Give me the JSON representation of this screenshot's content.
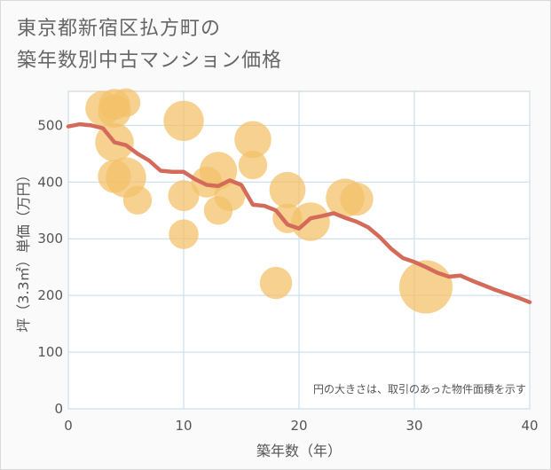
{
  "title": {
    "line1": "東京都新宿区払方町の",
    "line2": "築年数別中古マンション価格"
  },
  "chart_data": {
    "type": "scatter",
    "xlabel": "築年数（年）",
    "ylabel": "坪（3.3㎡）単価（万円）",
    "xlim": [
      0,
      40
    ],
    "ylim": [
      0,
      560
    ],
    "x_ticks": [
      "0",
      "10",
      "20",
      "30",
      "40"
    ],
    "y_ticks": [
      "0",
      "100",
      "200",
      "300",
      "400",
      "500"
    ],
    "grid": true,
    "note": "円の大きさは、取引のあった物件面積を示す",
    "colors": {
      "bubble": "#f3c26a",
      "line": "#d46b5a",
      "grid": "#c5d8e8"
    },
    "bubbles": [
      {
        "x": 3,
        "y": 530,
        "size": 0.35
      },
      {
        "x": 4,
        "y": 537,
        "size": 0.25
      },
      {
        "x": 4,
        "y": 525,
        "size": 0.3
      },
      {
        "x": 5,
        "y": 540,
        "size": 0.2
      },
      {
        "x": 4,
        "y": 470,
        "size": 0.45
      },
      {
        "x": 4,
        "y": 410,
        "size": 0.3
      },
      {
        "x": 5,
        "y": 408,
        "size": 0.5
      },
      {
        "x": 6,
        "y": 368,
        "size": 0.2
      },
      {
        "x": 10,
        "y": 508,
        "size": 0.5
      },
      {
        "x": 10,
        "y": 376,
        "size": 0.25
      },
      {
        "x": 10,
        "y": 308,
        "size": 0.22
      },
      {
        "x": 12,
        "y": 400,
        "size": 0.25
      },
      {
        "x": 13,
        "y": 420,
        "size": 0.42
      },
      {
        "x": 13,
        "y": 350,
        "size": 0.2
      },
      {
        "x": 14,
        "y": 376,
        "size": 0.25
      },
      {
        "x": 16,
        "y": 475,
        "size": 0.4
      },
      {
        "x": 16,
        "y": 430,
        "size": 0.2
      },
      {
        "x": 18,
        "y": 222,
        "size": 0.28
      },
      {
        "x": 19,
        "y": 386,
        "size": 0.38
      },
      {
        "x": 19,
        "y": 336,
        "size": 0.22
      },
      {
        "x": 21,
        "y": 330,
        "size": 0.45
      },
      {
        "x": 24,
        "y": 372,
        "size": 0.45
      },
      {
        "x": 25,
        "y": 370,
        "size": 0.3
      },
      {
        "x": 31,
        "y": 215,
        "size": 1.0
      }
    ],
    "trend": {
      "x": [
        0,
        1,
        2,
        3,
        4,
        5,
        6,
        7,
        8,
        9,
        10,
        11,
        12,
        13,
        14,
        15,
        16,
        17,
        18,
        19,
        20,
        21,
        22,
        23,
        24,
        25,
        26,
        27,
        28,
        29,
        30,
        31,
        32,
        33,
        34,
        35,
        36,
        37,
        38,
        39,
        40
      ],
      "y": [
        498,
        502,
        500,
        495,
        470,
        465,
        450,
        438,
        420,
        418,
        418,
        405,
        395,
        393,
        403,
        395,
        360,
        358,
        350,
        325,
        318,
        336,
        340,
        345,
        337,
        330,
        320,
        303,
        282,
        266,
        259,
        250,
        240,
        233,
        235,
        226,
        218,
        210,
        203,
        196,
        188
      ]
    }
  }
}
